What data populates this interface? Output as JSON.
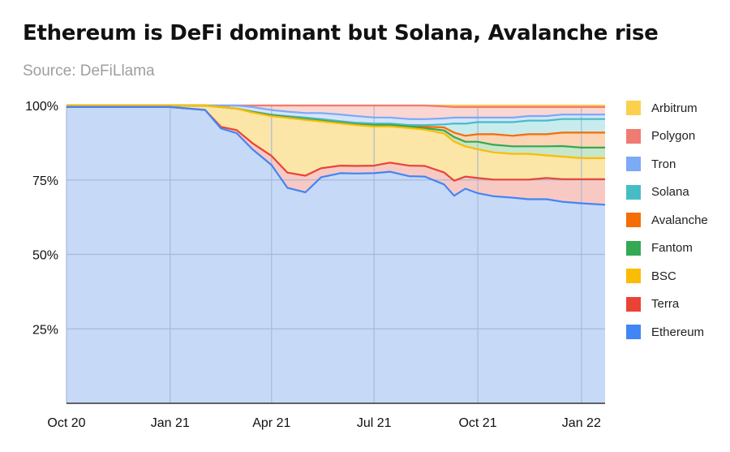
{
  "title": "Ethereum is DeFi dominant but Solana, Avalanche rise",
  "subtitle": "Source: DeFiLlama",
  "chart_data": {
    "type": "area",
    "stacked": true,
    "normalized": true,
    "grid": true,
    "legend_position": "right",
    "x": [
      "2020-10-01",
      "2020-11-01",
      "2020-12-01",
      "2021-01-01",
      "2021-02-01",
      "2021-02-15",
      "2021-03-01",
      "2021-03-15",
      "2021-04-01",
      "2021-04-15",
      "2021-05-01",
      "2021-05-15",
      "2021-06-01",
      "2021-06-15",
      "2021-07-01",
      "2021-07-15",
      "2021-08-01",
      "2021-08-15",
      "2021-09-01",
      "2021-09-10",
      "2021-09-20",
      "2021-10-01",
      "2021-10-15",
      "2021-11-01",
      "2021-11-15",
      "2021-12-01",
      "2021-12-15",
      "2022-01-01",
      "2022-01-15"
    ],
    "x_ticks": [
      "Oct 20",
      "Jan 21",
      "Apr 21",
      "Jul 21",
      "Oct 21",
      "Jan 22"
    ],
    "y_ticks": [
      "25%",
      "50%",
      "75%",
      "100%"
    ],
    "ylim": [
      0,
      100
    ],
    "series": [
      {
        "name": "Ethereum",
        "color": "#4285f4",
        "fill": "#c6d9f7",
        "values": [
          97.5,
          98.0,
          98.3,
          98.5,
          97.8,
          90.0,
          88.0,
          83.0,
          78.0,
          71.0,
          70.0,
          75.0,
          76.5,
          76.0,
          76.5,
          77.0,
          75.5,
          75.0,
          73.0,
          69.0,
          71.0,
          69.5,
          68.5,
          68.0,
          67.5,
          67.5,
          67.0,
          66.5,
          66.0
        ]
      },
      {
        "name": "Terra",
        "color": "#ea4335",
        "fill": "#f8c9c3",
        "values": [
          0,
          0,
          0,
          0,
          0,
          0.5,
          1.0,
          2.0,
          3.0,
          5.0,
          5.5,
          3.0,
          2.5,
          2.5,
          2.5,
          3.0,
          3.5,
          3.5,
          4.0,
          5.0,
          4.0,
          5.0,
          5.5,
          6.0,
          6.5,
          7.0,
          7.5,
          8.0,
          8.5
        ]
      },
      {
        "name": "BSC",
        "color": "#fbbc04",
        "fill": "#fbe6a8",
        "values": [
          0.5,
          0.5,
          0.5,
          0.5,
          1.5,
          6.5,
          7.0,
          10.0,
          13.0,
          18.0,
          18.5,
          15.5,
          14.0,
          13.5,
          13.0,
          12.0,
          12.5,
          12.0,
          13.0,
          13.0,
          10.0,
          9.5,
          9.0,
          8.5,
          8.5,
          7.5,
          7.5,
          7.0,
          7.0
        ]
      },
      {
        "name": "Fantom",
        "color": "#34a853",
        "fill": "#c8e6c9",
        "values": [
          0,
          0,
          0,
          0,
          0,
          0,
          0,
          0.2,
          0.3,
          0.3,
          0.3,
          0.3,
          0.3,
          0.3,
          0.5,
          0.5,
          0.5,
          0.5,
          1.0,
          1.5,
          1.5,
          2.5,
          2.5,
          2.5,
          2.5,
          3.0,
          3.5,
          3.5,
          3.5
        ]
      },
      {
        "name": "Avalanche",
        "color": "#f46d07",
        "fill": "#fcd5b5",
        "values": [
          0,
          0,
          0,
          0,
          0,
          0,
          0,
          0,
          0,
          0,
          0,
          0,
          0,
          0,
          0,
          0,
          0,
          0.5,
          1.0,
          1.5,
          2.0,
          2.5,
          3.5,
          3.5,
          4.0,
          4.0,
          4.5,
          5.0,
          5.0
        ]
      },
      {
        "name": "Solana",
        "color": "#46bdc6",
        "fill": "#c8ecee",
        "values": [
          0,
          0,
          0,
          0,
          0,
          0,
          0,
          0.1,
          0.2,
          0.3,
          0.5,
          0.5,
          0.5,
          0.5,
          0.5,
          0.5,
          0.5,
          0.5,
          1.0,
          3.0,
          4.0,
          4.0,
          4.0,
          4.5,
          4.5,
          4.5,
          4.5,
          4.5,
          4.5
        ]
      },
      {
        "name": "Tron",
        "color": "#7baaf7",
        "fill": "#d6e4fb",
        "values": [
          0,
          0,
          0,
          0,
          0,
          0.5,
          1.0,
          1.5,
          1.5,
          1.5,
          1.5,
          2.0,
          2.2,
          2.2,
          2.0,
          2.0,
          2.0,
          2.0,
          2.0,
          2.0,
          2.0,
          1.5,
          1.5,
          1.5,
          1.5,
          1.5,
          1.5,
          1.5,
          1.5
        ]
      },
      {
        "name": "Polygon",
        "color": "#f07b72",
        "fill": "#fbd7d3",
        "values": [
          0,
          0,
          0,
          0,
          0,
          0,
          0,
          0.5,
          1.5,
          2.0,
          2.5,
          2.5,
          3.0,
          3.5,
          4.0,
          4.0,
          4.5,
          4.5,
          4.0,
          3.5,
          3.5,
          3.5,
          3.5,
          3.5,
          3.0,
          3.0,
          2.5,
          2.5,
          2.5
        ]
      },
      {
        "name": "Arbitrum",
        "color": "#fcd04f",
        "fill": "#fdf0c6",
        "values": [
          0,
          0,
          0,
          0,
          0,
          0,
          0,
          0,
          0,
          0,
          0,
          0,
          0,
          0,
          0,
          0,
          0,
          0,
          0.3,
          0.5,
          0.5,
          0.5,
          0.5,
          0.5,
          0.5,
          0.5,
          0.5,
          0.5,
          0.5
        ]
      }
    ]
  }
}
